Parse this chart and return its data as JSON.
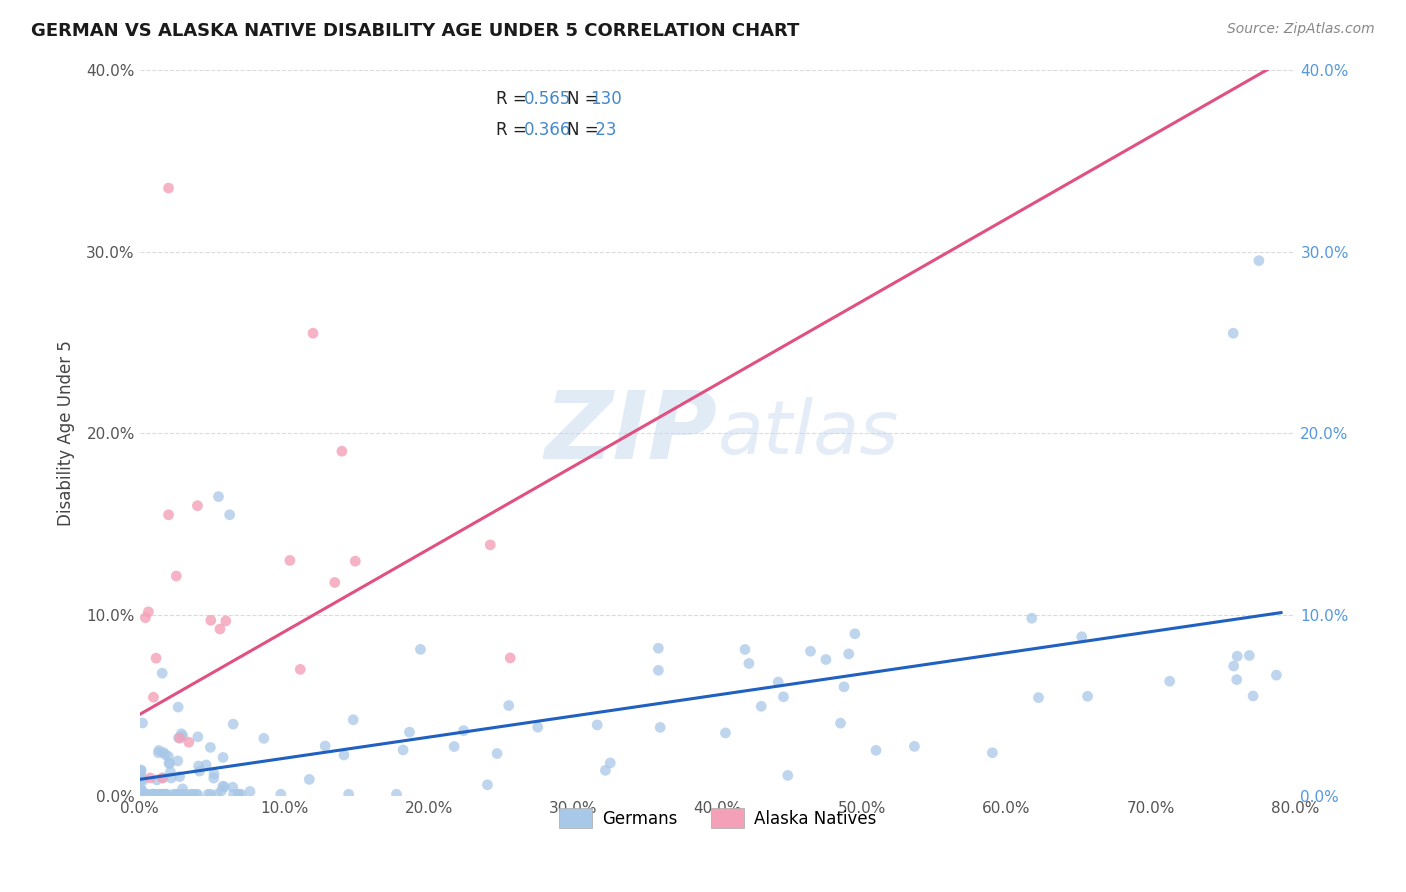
{
  "title": "GERMAN VS ALASKA NATIVE DISABILITY AGE UNDER 5 CORRELATION CHART",
  "source": "Source: ZipAtlas.com",
  "ylabel": "Disability Age Under 5",
  "watermark_zip": "ZIP",
  "watermark_atlas": "atlas",
  "xlim": [
    0.0,
    0.8
  ],
  "ylim": [
    0.0,
    0.4
  ],
  "german_color": "#A8C8E8",
  "alaska_color": "#F4A0B8",
  "german_line_color": "#2060C0",
  "alaska_line_color": "#E05080",
  "german_r": 0.565,
  "german_n": 130,
  "alaska_r": 0.366,
  "alaska_n": 23,
  "background_color": "#ffffff",
  "grid_color": "#cccccc",
  "text_dark": "#333333",
  "text_blue": "#4488CC",
  "right_axis_color": "#5599DD",
  "legend_box_edge": "#bbbbbb"
}
